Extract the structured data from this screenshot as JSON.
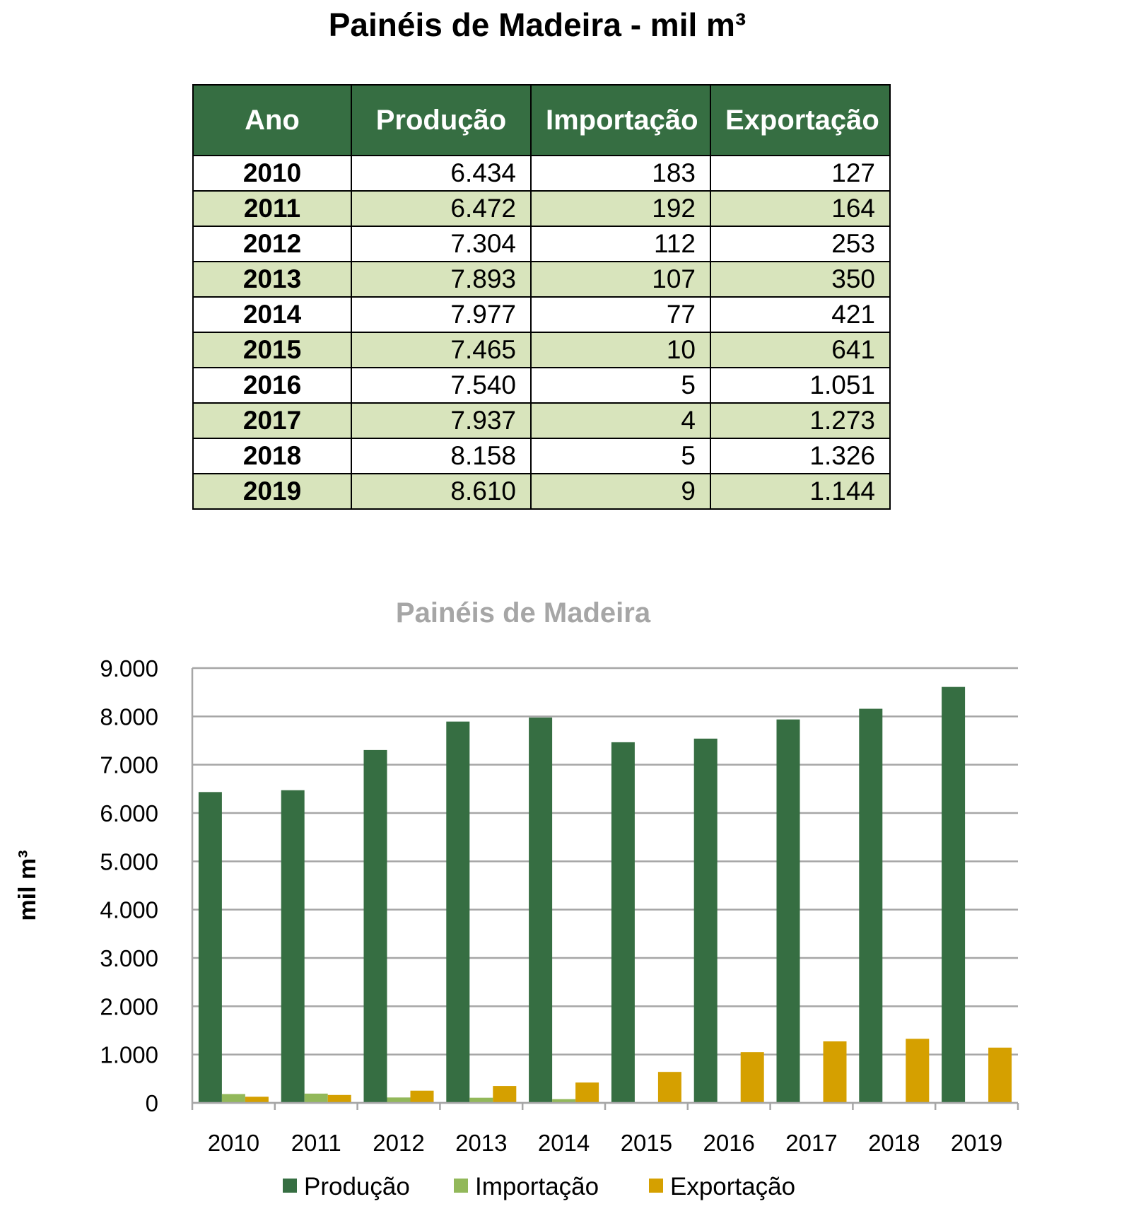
{
  "title": "Painéis de Madeira - mil m³",
  "table": {
    "headers": [
      "Ano",
      "Produção",
      "Importação",
      "Exportação"
    ],
    "rows": [
      [
        "2010",
        "6.434",
        "183",
        "127"
      ],
      [
        "2011",
        "6.472",
        "192",
        "164"
      ],
      [
        "2012",
        "7.304",
        "112",
        "253"
      ],
      [
        "2013",
        "7.893",
        "107",
        "350"
      ],
      [
        "2014",
        "7.977",
        "77",
        "421"
      ],
      [
        "2015",
        "7.465",
        "10",
        "641"
      ],
      [
        "2016",
        "7.540",
        "5",
        "1.051"
      ],
      [
        "2017",
        "7.937",
        "4",
        "1.273"
      ],
      [
        "2018",
        "8.158",
        "5",
        "1.326"
      ],
      [
        "2019",
        "8.610",
        "9",
        "1.144"
      ]
    ]
  },
  "chart_data": {
    "type": "bar",
    "title": "Painéis de Madeira",
    "xlabel": "",
    "ylabel": "mil m³",
    "ylim": [
      0,
      9000
    ],
    "yticks": [
      0,
      1000,
      2000,
      3000,
      4000,
      5000,
      6000,
      7000,
      8000,
      9000
    ],
    "ytick_labels": [
      "0",
      "1.000",
      "2.000",
      "3.000",
      "4.000",
      "5.000",
      "6.000",
      "7.000",
      "8.000",
      "9.000"
    ],
    "grid": true,
    "legend_position": "bottom",
    "categories": [
      "2010",
      "2011",
      "2012",
      "2013",
      "2014",
      "2015",
      "2016",
      "2017",
      "2018",
      "2019"
    ],
    "series": [
      {
        "name": "Produção",
        "color": "#366e42",
        "values": [
          6434,
          6472,
          7304,
          7893,
          7977,
          7465,
          7540,
          7937,
          8158,
          8610
        ]
      },
      {
        "name": "Importação",
        "color": "#92b85a",
        "values": [
          183,
          192,
          112,
          107,
          77,
          10,
          5,
          4,
          5,
          9
        ]
      },
      {
        "name": "Exportação",
        "color": "#d5a000",
        "values": [
          127,
          164,
          253,
          350,
          421,
          641,
          1051,
          1273,
          1326,
          1144
        ]
      }
    ]
  }
}
